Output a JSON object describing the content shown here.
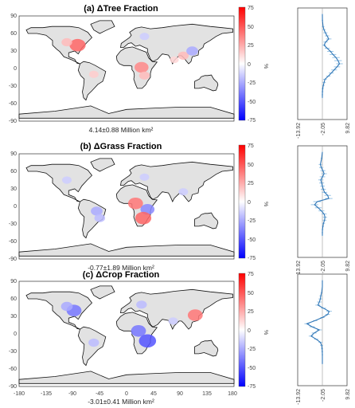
{
  "figure": {
    "panels": [
      {
        "title": "(a) ΔTree Fraction",
        "summary": "4.14±0.88 Million km²",
        "colorbar_label": "%",
        "colorbar_ticks": [
          "75",
          "50",
          "25",
          "0",
          "-25",
          "-50",
          "-75"
        ],
        "profile_ticks": [
          "-13.92",
          "-2.05",
          "9.82"
        ]
      },
      {
        "title": "(b) ΔGrass Fraction",
        "summary": "-0.77±1.89 Million km²",
        "colorbar_label": "%",
        "colorbar_ticks": [
          "75",
          "50",
          "25",
          "0",
          "-25",
          "-50",
          "-75"
        ],
        "profile_ticks": [
          "-13.92",
          "-2.05",
          "9.82"
        ]
      },
      {
        "title": "(c) ΔCrop Fraction",
        "summary": "-3.01±0.41 Million km²",
        "colorbar_label": "%",
        "colorbar_ticks": [
          "75",
          "50",
          "25",
          "0",
          "-25",
          "-50",
          "-75"
        ],
        "profile_ticks": [
          "-13.92",
          "-2.05",
          "9.82"
        ]
      }
    ],
    "lat_ticks": [
      "90",
      "60",
      "30",
      "0",
      "-30",
      "-60",
      "-90"
    ],
    "lon_ticks": [
      "-180",
      "-135",
      "-90",
      "-45",
      "0",
      "45",
      "90",
      "135",
      "180"
    ]
  },
  "chart_data": [
    {
      "type": "heatmap",
      "title": "(a) ΔTree Fraction",
      "annotation": "4.14±0.88 Million km²",
      "colorbar": {
        "label": "%",
        "range": [
          -75,
          75
        ],
        "colors": [
          "#0000ff",
          "#ffffff",
          "#ff0000"
        ]
      },
      "xlim": [
        -180,
        180
      ],
      "ylim": [
        -90,
        90
      ],
      "hotspots": [
        {
          "lon": -82,
          "lat": 40,
          "value": 45
        },
        {
          "lon": -100,
          "lat": 45,
          "value": 20
        },
        {
          "lon": 25,
          "lat": 2,
          "value": 35
        },
        {
          "lon": 30,
          "lat": -12,
          "value": 20
        },
        {
          "lon": -55,
          "lat": -10,
          "value": 15
        },
        {
          "lon": 95,
          "lat": 22,
          "value": 20
        },
        {
          "lon": 80,
          "lat": 15,
          "value": 12
        },
        {
          "lon": 110,
          "lat": 30,
          "value": -25
        },
        {
          "lon": 30,
          "lat": 55,
          "value": -15
        }
      ]
    },
    {
      "type": "line",
      "profile_of": "(a) ΔTree Fraction",
      "xlim": [
        -13.92,
        9.82
      ],
      "ylim": [
        -90,
        90
      ],
      "baseline": -2.05,
      "lat": [
        80,
        70,
        60,
        55,
        50,
        45,
        40,
        35,
        30,
        25,
        20,
        15,
        10,
        5,
        0,
        -5,
        -10,
        -15,
        -20,
        -25,
        -30,
        -35,
        -40,
        -45,
        -50,
        -55
      ],
      "values": [
        -2.05,
        -2.0,
        -1.7,
        -1.3,
        -0.6,
        0.2,
        1.0,
        -0.5,
        -1.2,
        0.3,
        1.8,
        3.0,
        4.5,
        5.5,
        6.2,
        5.0,
        3.6,
        2.2,
        0.8,
        -0.8,
        -1.2,
        -1.6,
        -1.9,
        -2.0,
        -2.05,
        -2.05
      ],
      "errors": [
        0.2,
        0.3,
        0.6,
        0.8,
        1.0,
        1.1,
        1.3,
        1.0,
        0.9,
        1.2,
        1.5,
        1.6,
        1.8,
        1.8,
        1.6,
        1.5,
        1.4,
        1.2,
        1.0,
        0.9,
        0.8,
        0.6,
        0.5,
        0.4,
        0.3,
        0.2
      ]
    },
    {
      "type": "heatmap",
      "title": "(b) ΔGrass Fraction",
      "annotation": "-0.77±1.89 Million km²",
      "colorbar": {
        "label": "%",
        "range": [
          -75,
          75
        ],
        "colors": [
          "#0000ff",
          "#ffffff",
          "#ff0000"
        ]
      },
      "xlim": [
        -180,
        180
      ],
      "ylim": [
        -90,
        90
      ],
      "hotspots": [
        {
          "lon": 15,
          "lat": 5,
          "value": 40
        },
        {
          "lon": 35,
          "lat": -5,
          "value": -35
        },
        {
          "lon": 28,
          "lat": -20,
          "value": 45
        },
        {
          "lon": -50,
          "lat": -8,
          "value": -25
        },
        {
          "lon": -45,
          "lat": -20,
          "value": -20
        },
        {
          "lon": 30,
          "lat": 50,
          "value": -15
        },
        {
          "lon": 95,
          "lat": 25,
          "value": -15
        },
        {
          "lon": -100,
          "lat": 45,
          "value": -15
        }
      ]
    },
    {
      "type": "line",
      "profile_of": "(b) ΔGrass Fraction",
      "xlim": [
        -13.92,
        9.82
      ],
      "ylim": [
        -90,
        90
      ],
      "baseline": -2.05,
      "lat": [
        80,
        70,
        60,
        55,
        50,
        45,
        40,
        35,
        30,
        25,
        20,
        15,
        10,
        5,
        0,
        -5,
        -10,
        -15,
        -20,
        -25,
        -30,
        -35,
        -40,
        -45,
        -50,
        -55
      ],
      "values": [
        -2.05,
        -2.4,
        -3.0,
        -2.6,
        -1.8,
        -1.2,
        -2.0,
        -2.8,
        -2.4,
        -2.0,
        -1.6,
        -1.0,
        0.5,
        1.0,
        -4.5,
        -5.8,
        -4.0,
        -2.5,
        -1.2,
        -0.8,
        -1.0,
        -1.5,
        -1.8,
        -2.0,
        -2.05,
        -2.05
      ],
      "errors": [
        0.2,
        0.4,
        0.8,
        1.0,
        1.2,
        1.3,
        1.3,
        1.2,
        1.2,
        1.1,
        1.2,
        1.3,
        1.6,
        1.8,
        1.9,
        1.8,
        1.6,
        1.4,
        1.2,
        1.0,
        0.9,
        0.7,
        0.5,
        0.4,
        0.3,
        0.2
      ]
    },
    {
      "type": "heatmap",
      "title": "(c) ΔCrop Fraction",
      "annotation": "-3.01±0.41 Million km²",
      "colorbar": {
        "label": "%",
        "range": [
          -75,
          75
        ],
        "colors": [
          "#0000ff",
          "#ffffff",
          "#ff0000"
        ]
      },
      "xlim": [
        -180,
        180
      ],
      "ylim": [
        -90,
        90
      ],
      "hotspots": [
        {
          "lon": -88,
          "lat": 40,
          "value": -40
        },
        {
          "lon": -100,
          "lat": 47,
          "value": -25
        },
        {
          "lon": 115,
          "lat": 32,
          "value": 40
        },
        {
          "lon": 20,
          "lat": 5,
          "value": -40
        },
        {
          "lon": 35,
          "lat": -12,
          "value": -50
        },
        {
          "lon": 25,
          "lat": 50,
          "value": -20
        },
        {
          "lon": -55,
          "lat": -15,
          "value": -20
        },
        {
          "lon": 78,
          "lat": 22,
          "value": -15
        }
      ]
    },
    {
      "type": "line",
      "profile_of": "(c) ΔCrop Fraction",
      "xlim": [
        -13.92,
        9.82
      ],
      "ylim": [
        -90,
        90
      ],
      "baseline": -2.05,
      "lat": [
        80,
        70,
        60,
        55,
        50,
        45,
        40,
        35,
        30,
        25,
        20,
        15,
        10,
        5,
        0,
        -5,
        -10,
        -15,
        -20,
        -25,
        -30,
        -35,
        -40,
        -45,
        -50,
        -55
      ],
      "values": [
        -2.05,
        -2.05,
        -2.4,
        -2.8,
        -3.0,
        -3.5,
        -4.2,
        -1.5,
        1.2,
        0.5,
        -2.0,
        -5.5,
        -9.5,
        -7.0,
        -3.5,
        -6.0,
        -7.5,
        -5.0,
        -3.0,
        -2.4,
        -2.2,
        -2.1,
        -2.05,
        -2.05,
        -2.05,
        -2.05
      ],
      "errors": [
        0.1,
        0.2,
        0.4,
        0.6,
        0.9,
        1.1,
        1.2,
        1.2,
        1.3,
        1.1,
        1.0,
        1.0,
        1.2,
        1.3,
        1.2,
        1.2,
        1.1,
        1.0,
        0.9,
        0.7,
        0.5,
        0.4,
        0.3,
        0.2,
        0.2,
        0.1
      ]
    }
  ]
}
